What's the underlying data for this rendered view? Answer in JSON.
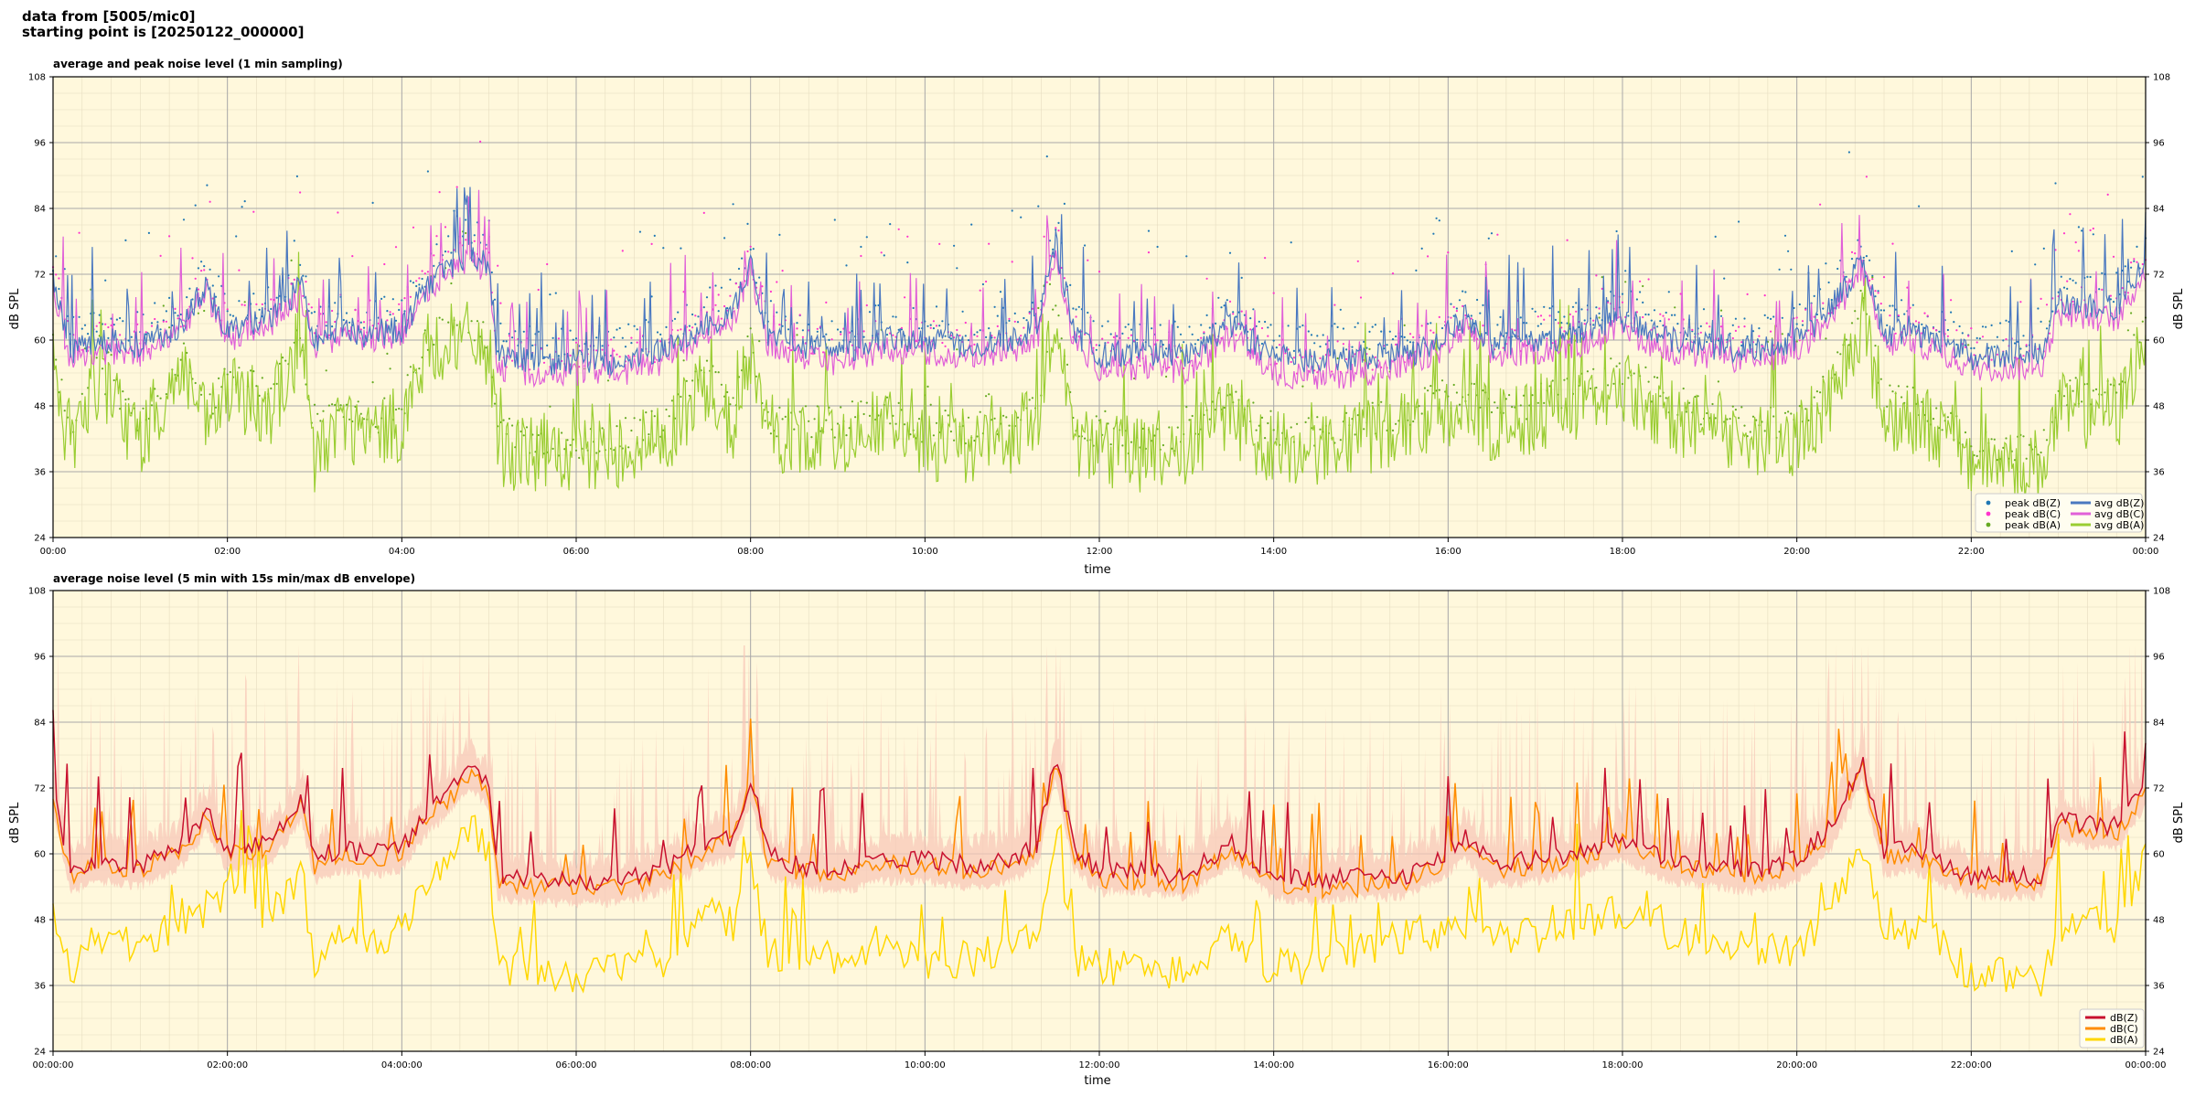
{
  "header": {
    "line1": "data from [5005/mic0]",
    "line2": "starting point is [20250122_000000]"
  },
  "colors": {
    "plot_bg": "#fff8dc",
    "peak_z": "#1f77b4",
    "peak_c": "#ff33cc",
    "peak_a": "#66aa22",
    "avg_z": "#4a78c0",
    "avg_c": "#e060d8",
    "avg_a": "#9acd32",
    "env_fill": "#f8c8b8",
    "db_z": "#c8102e",
    "db_c": "#ff8c00",
    "db_a": "#ffd700"
  },
  "chart_data": [
    {
      "type": "line",
      "title": "average and peak noise level (1 min sampling)",
      "xlabel": "time",
      "ylabel": "dB SPL",
      "ylabel_right": "dB SPL",
      "ylim": [
        24,
        108
      ],
      "xlim_hours": [
        0,
        24
      ],
      "y_ticks": [
        "24",
        "36",
        "48",
        "60",
        "72",
        "84",
        "96",
        "108"
      ],
      "x_ticks": [
        "00:00",
        "02:00",
        "04:00",
        "06:00",
        "08:00",
        "10:00",
        "12:00",
        "14:00",
        "16:00",
        "18:00",
        "20:00",
        "22:00",
        "00:00"
      ],
      "grid": true,
      "legend_position": "bottom-right",
      "legend": [
        {
          "label": "peak dB(Z)",
          "kind": "dot",
          "color_key": "peak_z"
        },
        {
          "label": "peak dB(C)",
          "kind": "dot",
          "color_key": "peak_c"
        },
        {
          "label": "peak dB(A)",
          "kind": "dot",
          "color_key": "peak_a"
        },
        {
          "label": "avg dB(Z)",
          "kind": "line",
          "color_key": "avg_z"
        },
        {
          "label": "avg dB(C)",
          "kind": "line",
          "color_key": "avg_c"
        },
        {
          "label": "avg dB(A)",
          "kind": "line",
          "color_key": "avg_a"
        }
      ],
      "profile_hours": [
        0,
        0.2,
        0.5,
        1.0,
        1.5,
        1.75,
        2.0,
        2.5,
        2.85,
        3.0,
        3.3,
        3.6,
        4.0,
        4.3,
        4.6,
        4.8,
        5.0,
        5.1,
        5.5,
        6.0,
        6.5,
        7.0,
        7.5,
        7.8,
        8.0,
        8.2,
        8.5,
        9.0,
        9.5,
        10.0,
        10.5,
        11.0,
        11.3,
        11.5,
        11.7,
        12.0,
        12.5,
        13.0,
        13.5,
        14.0,
        14.5,
        15.0,
        15.5,
        15.9,
        16.2,
        16.5,
        17.0,
        17.5,
        18.0,
        18.5,
        19.0,
        19.5,
        20.0,
        20.4,
        20.75,
        21.0,
        21.3,
        21.6,
        22.0,
        22.5,
        22.8,
        23.0,
        23.5,
        23.7,
        24.0
      ],
      "series": [
        {
          "name": "avg dB(Z)",
          "values": [
            72,
            58,
            60,
            59,
            63,
            70,
            62,
            64,
            70,
            60,
            62,
            61,
            62,
            70,
            74,
            76,
            73,
            57,
            56,
            56,
            56,
            58,
            63,
            65,
            74,
            61,
            59,
            58,
            60,
            60,
            59,
            60,
            63,
            78,
            62,
            57,
            58,
            57,
            63,
            57,
            56,
            57,
            57,
            60,
            64,
            59,
            60,
            61,
            64,
            60,
            59,
            58,
            60,
            66,
            74,
            61,
            62,
            60,
            57,
            57,
            57,
            67,
            66,
            66,
            74
          ]
        },
        {
          "name": "avg dB(C)",
          "values": [
            70,
            56,
            58,
            57,
            62,
            69,
            60,
            63,
            68,
            58,
            61,
            60,
            61,
            69,
            73,
            75,
            72,
            55,
            54,
            54,
            54,
            56,
            61,
            64,
            73,
            59,
            57,
            56,
            58,
            58,
            57,
            58,
            61,
            77,
            60,
            55,
            55,
            54,
            61,
            54,
            53,
            54,
            55,
            58,
            62,
            57,
            58,
            59,
            62,
            58,
            57,
            56,
            58,
            64,
            73,
            59,
            60,
            58,
            55,
            55,
            55,
            65,
            64,
            64,
            73
          ]
        },
        {
          "name": "avg dB(A)",
          "values": [
            55,
            40,
            52,
            42,
            55,
            44,
            50,
            48,
            58,
            38,
            46,
            42,
            45,
            58,
            60,
            60,
            58,
            40,
            39,
            38,
            40,
            42,
            52,
            44,
            58,
            42,
            42,
            42,
            45,
            40,
            41,
            42,
            46,
            66,
            42,
            40,
            39,
            40,
            46,
            40,
            40,
            42,
            44,
            47,
            48,
            44,
            46,
            48,
            52,
            46,
            44,
            42,
            42,
            50,
            64,
            46,
            46,
            44,
            38,
            38,
            37,
            47,
            47,
            47,
            62
          ]
        }
      ],
      "peak_scatter": {
        "names": [
          "peak dB(Z)",
          "peak dB(C)",
          "peak dB(A)"
        ],
        "offset_db": [
          8,
          7,
          6
        ],
        "spread_db": 16
      }
    },
    {
      "type": "line",
      "title": "average noise level (5 min with 15s min/max dB envelope)",
      "xlabel": "time",
      "ylabel": "dB SPL",
      "ylabel_right": "dB SPL",
      "ylim": [
        24,
        108
      ],
      "xlim_hours": [
        0,
        24
      ],
      "y_ticks": [
        "24",
        "36",
        "48",
        "60",
        "72",
        "84",
        "96",
        "108"
      ],
      "x_ticks": [
        "00:00:00",
        "02:00:00",
        "04:00:00",
        "06:00:00",
        "08:00:00",
        "10:00:00",
        "12:00:00",
        "14:00:00",
        "16:00:00",
        "18:00:00",
        "20:00:00",
        "22:00:00",
        "00:00:00"
      ],
      "grid": true,
      "legend_position": "bottom-right",
      "legend": [
        {
          "label": "dB(Z)",
          "kind": "line",
          "color_key": "db_z"
        },
        {
          "label": "dB(C)",
          "kind": "line",
          "color_key": "db_c"
        },
        {
          "label": "dB(A)",
          "kind": "line",
          "color_key": "db_a"
        }
      ],
      "profile_hours": [
        0,
        0.2,
        0.5,
        1.0,
        1.5,
        1.75,
        2.0,
        2.5,
        2.85,
        3.0,
        3.3,
        3.6,
        4.0,
        4.3,
        4.6,
        4.8,
        5.0,
        5.1,
        5.5,
        6.0,
        6.5,
        7.0,
        7.5,
        7.8,
        8.0,
        8.2,
        8.5,
        9.0,
        9.5,
        10.0,
        10.5,
        11.0,
        11.3,
        11.5,
        11.7,
        12.0,
        12.5,
        13.0,
        13.5,
        14.0,
        14.5,
        15.0,
        15.5,
        15.9,
        16.2,
        16.5,
        17.0,
        17.5,
        18.0,
        18.5,
        19.0,
        19.5,
        20.0,
        20.4,
        20.75,
        21.0,
        21.3,
        21.6,
        22.0,
        22.5,
        22.8,
        23.0,
        23.5,
        23.7,
        24.0
      ],
      "series": [
        {
          "name": "dB(Z)",
          "values": [
            72,
            57,
            59,
            58,
            62,
            68,
            61,
            62,
            70,
            59,
            61,
            60,
            61,
            68,
            72,
            76,
            72,
            56,
            55,
            55,
            55,
            57,
            62,
            63,
            74,
            60,
            58,
            57,
            59,
            59,
            58,
            59,
            62,
            78,
            61,
            57,
            57,
            56,
            62,
            56,
            55,
            56,
            56,
            59,
            63,
            58,
            59,
            60,
            63,
            59,
            58,
            57,
            59,
            65,
            77,
            60,
            61,
            59,
            56,
            56,
            56,
            66,
            65,
            65,
            73
          ]
        },
        {
          "name": "dB(C)",
          "values": [
            70,
            56,
            58,
            57,
            61,
            67,
            60,
            61,
            69,
            58,
            60,
            59,
            60,
            67,
            71,
            75,
            71,
            55,
            54,
            54,
            54,
            56,
            61,
            62,
            73,
            59,
            57,
            56,
            58,
            58,
            57,
            58,
            61,
            77,
            60,
            55,
            55,
            54,
            61,
            54,
            53,
            54,
            55,
            58,
            62,
            57,
            58,
            59,
            62,
            58,
            57,
            56,
            58,
            64,
            76,
            59,
            60,
            58,
            55,
            55,
            55,
            65,
            64,
            64,
            72
          ]
        },
        {
          "name": "dB(A)",
          "values": [
            50,
            39,
            46,
            42,
            48,
            50,
            52,
            48,
            57,
            40,
            47,
            44,
            46,
            56,
            60,
            66,
            60,
            40,
            38,
            38,
            39,
            41,
            50,
            47,
            58,
            42,
            41,
            41,
            44,
            40,
            41,
            42,
            45,
            65,
            41,
            40,
            38,
            39,
            45,
            39,
            40,
            42,
            45,
            46,
            47,
            44,
            45,
            47,
            50,
            46,
            44,
            42,
            42,
            50,
            62,
            47,
            46,
            44,
            38,
            38,
            37,
            47,
            47,
            47,
            60
          ]
        }
      ],
      "envelope": {
        "min_offset_db": -3,
        "max_spread_db": 26
      }
    }
  ]
}
